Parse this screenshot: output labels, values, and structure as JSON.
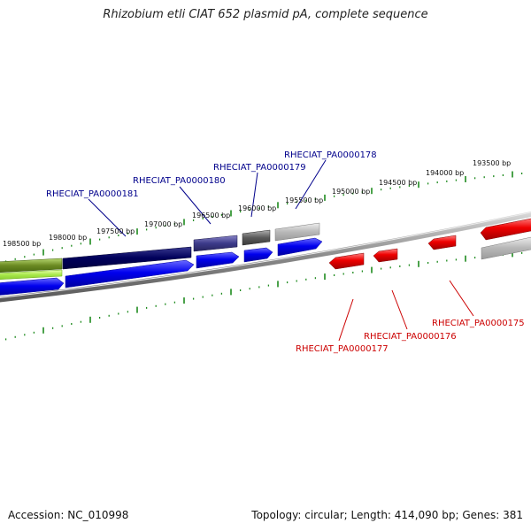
{
  "title": "Rhizobium etli CIAT 652 plasmid pA, complete sequence",
  "footer": {
    "accession": "Accession: NC_010998",
    "info": "Topology: circular; Length: 414,090 bp; Genes: 381"
  },
  "tick_labels": [
    "198500 bp",
    "198000 bp",
    "197500 bp",
    "197000 bp",
    "196500 bp",
    "196000 bp",
    "195500 bp",
    "195000 bp",
    "194500 bp",
    "194000 bp",
    "193500 bp"
  ],
  "genes_forward": [
    "RHECIAT_PA0000181",
    "RHECIAT_PA0000180",
    "RHECIAT_PA0000179",
    "RHECIAT_PA0000178"
  ],
  "genes_reverse": [
    "RHECIAT_PA0000177",
    "RHECIAT_PA0000176",
    "RHECIAT_PA0000175"
  ],
  "colors": {
    "forward_label": "#00008b",
    "reverse_label": "#cc0000",
    "cds_blue": "#0000ee",
    "cds_red": "#ee0000",
    "tick": "#1e8b1e",
    "backbone": "#8a8a8a"
  }
}
